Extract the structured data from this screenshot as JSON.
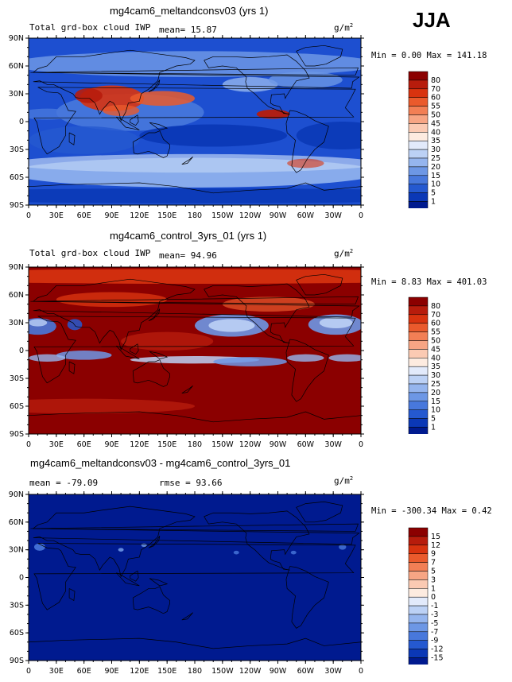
{
  "season": "JJA",
  "panels": [
    {
      "title": "mg4cam6_meltandconsv03 (yrs 1)",
      "left_text": "Total grd-box cloud IWP",
      "center_text": "mean=  15.87",
      "units": "g/m",
      "units_exp": "2",
      "minmax": "Min =    0.00 Max = 141.18",
      "colorbar_labels": [
        "80",
        "70",
        "60",
        "55",
        "50",
        "45",
        "40",
        "35",
        "30",
        "25",
        "20",
        "15",
        "10",
        "5",
        "1"
      ],
      "colors": [
        "#8b0000",
        "#b71c0c",
        "#d8330f",
        "#ea5a2c",
        "#f27f55",
        "#f7a584",
        "#fbcab3",
        "#fdebe0",
        "#e2eafb",
        "#bcd1f5",
        "#95b5ee",
        "#6d97e5",
        "#4878dc",
        "#2559d0",
        "#0b38b6",
        "#001a8f"
      ]
    },
    {
      "title": "mg4cam6_control_3yrs_01 (yrs 1)",
      "left_text": "Total grd-box cloud IWP",
      "center_text": "mean=  94.96",
      "units": "g/m",
      "units_exp": "2",
      "minmax": "Min =    8.83 Max = 401.03",
      "colorbar_labels": [
        "80",
        "70",
        "60",
        "55",
        "50",
        "45",
        "40",
        "35",
        "30",
        "25",
        "20",
        "15",
        "10",
        "5",
        "1"
      ],
      "colors": [
        "#8b0000",
        "#b71c0c",
        "#d8330f",
        "#ea5a2c",
        "#f27f55",
        "#f7a584",
        "#fbcab3",
        "#fdebe0",
        "#e2eafb",
        "#bcd1f5",
        "#95b5ee",
        "#6d97e5",
        "#4878dc",
        "#2559d0",
        "#0b38b6",
        "#001a8f"
      ]
    },
    {
      "title": "mg4cam6_meltandconsv03 - mg4cam6_control_3yrs_01",
      "left_text": "mean = -79.09",
      "center_text": "rmse =  93.66",
      "units": "g/m",
      "units_exp": "2",
      "minmax": "Min = -300.34 Max =    0.42",
      "colorbar_labels": [
        "15",
        "12",
        "9",
        "7",
        "5",
        "3",
        "1",
        "0",
        "-1",
        "-3",
        "-5",
        "-7",
        "-9",
        "-12",
        "-15"
      ],
      "colors": [
        "#8b0000",
        "#b71c0c",
        "#d8330f",
        "#ea5a2c",
        "#f27f55",
        "#f7a584",
        "#fbcab3",
        "#fdebe0",
        "#e2eafb",
        "#bcd1f5",
        "#95b5ee",
        "#6d97e5",
        "#4878dc",
        "#2559d0",
        "#0b38b6",
        "#001a8f"
      ]
    }
  ],
  "lat_labels": [
    "90N",
    "60N",
    "30N",
    "0",
    "30S",
    "60S",
    "90S"
  ],
  "lon_labels": [
    "0",
    "30E",
    "60E",
    "90E",
    "120E",
    "150E",
    "180",
    "150W",
    "120W",
    "90W",
    "60W",
    "30W",
    "0"
  ],
  "chart_data": [
    {
      "type": "heatmap",
      "title": "mg4cam6_meltandconsv03 (yrs 1)",
      "field": "Total grd-box cloud IWP",
      "season": "JJA",
      "units": "g/m2",
      "mean": 15.87,
      "min": 0.0,
      "max": 141.18,
      "levels": [
        1,
        5,
        10,
        15,
        20,
        25,
        30,
        35,
        40,
        45,
        50,
        55,
        60,
        70,
        80
      ],
      "x_ticks": [
        "0",
        "30E",
        "60E",
        "90E",
        "120E",
        "150E",
        "180",
        "150W",
        "120W",
        "90W",
        "60W",
        "30W",
        "0"
      ],
      "y_ticks": [
        "90N",
        "60N",
        "30N",
        "0",
        "30S",
        "60S",
        "90S"
      ]
    },
    {
      "type": "heatmap",
      "title": "mg4cam6_control_3yrs_01 (yrs 1)",
      "field": "Total grd-box cloud IWP",
      "season": "JJA",
      "units": "g/m2",
      "mean": 94.96,
      "min": 8.83,
      "max": 401.03,
      "levels": [
        1,
        5,
        10,
        15,
        20,
        25,
        30,
        35,
        40,
        45,
        50,
        55,
        60,
        70,
        80
      ],
      "x_ticks": [
        "0",
        "30E",
        "60E",
        "90E",
        "120E",
        "150E",
        "180",
        "150W",
        "120W",
        "90W",
        "60W",
        "30W",
        "0"
      ],
      "y_ticks": [
        "90N",
        "60N",
        "30N",
        "0",
        "30S",
        "60S",
        "90S"
      ]
    },
    {
      "type": "heatmap",
      "title": "mg4cam6_meltandconsv03 - mg4cam6_control_3yrs_01",
      "season": "JJA",
      "units": "g/m2",
      "mean": -79.09,
      "rmse": 93.66,
      "min": -300.34,
      "max": 0.42,
      "levels": [
        -15,
        -12,
        -9,
        -7,
        -5,
        -3,
        -1,
        0,
        1,
        3,
        5,
        7,
        9,
        12,
        15
      ],
      "x_ticks": [
        "0",
        "30E",
        "60E",
        "90E",
        "120E",
        "150E",
        "180",
        "150W",
        "120W",
        "90W",
        "60W",
        "30W",
        "0"
      ],
      "y_ticks": [
        "90N",
        "60N",
        "30N",
        "0",
        "30S",
        "60S",
        "90S"
      ]
    }
  ]
}
